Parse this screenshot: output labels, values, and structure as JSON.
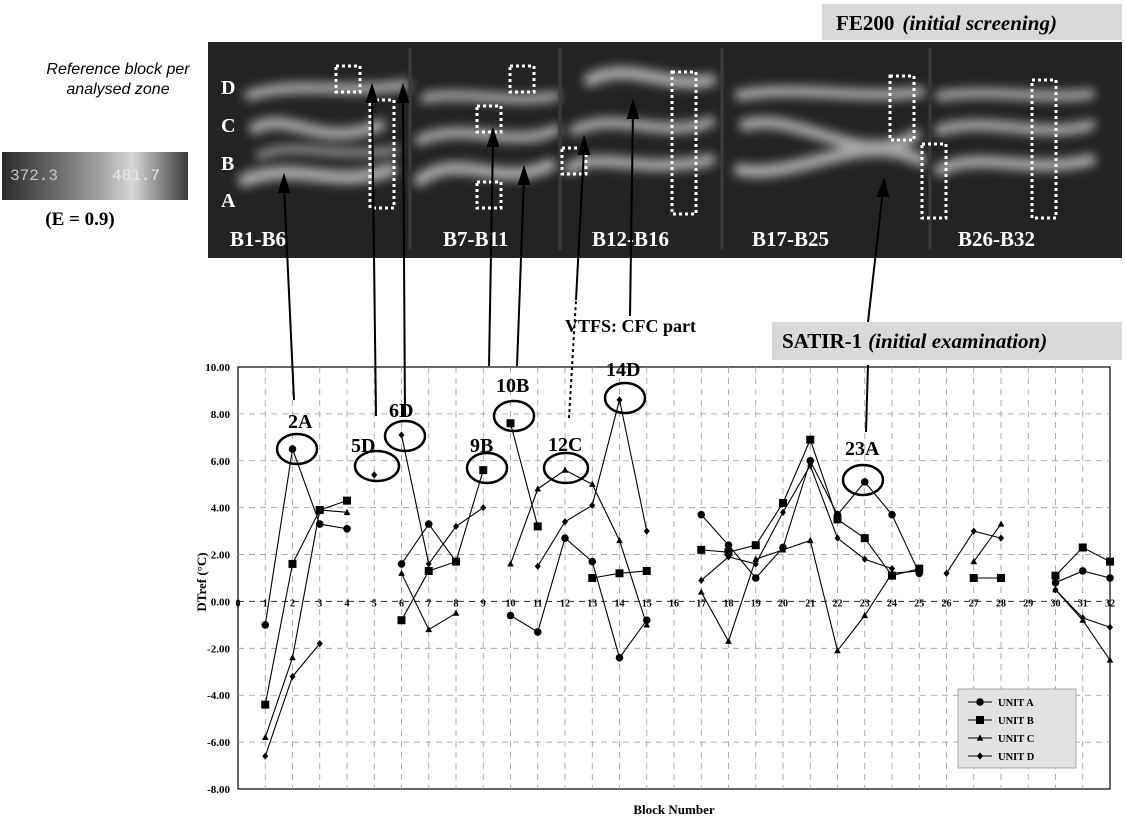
{
  "header": {
    "fe200_label": "FE200",
    "fe200_sub": "(initial screening)",
    "satir_label": "SATIR-1",
    "satir_sub": "(initial examination)",
    "vtfs_label": "VTFS: CFC  part",
    "reference_note_line1": "Reference block per",
    "reference_note_line2": "analysed zone",
    "emissivity": "(E = 0.9)",
    "colorbar_values": [
      "372.3",
      "481.7"
    ]
  },
  "ir_image": {
    "row_labels": [
      "D",
      "C",
      "B",
      "A"
    ],
    "zone_labels": [
      "B1-B6",
      "B7-B11",
      "B12-B16",
      "B17-B25",
      "B26-B32"
    ]
  },
  "callouts": [
    "2A",
    "5D",
    "6D",
    "9B",
    "10B",
    "12C",
    "14D",
    "23A"
  ],
  "chart_data": {
    "type": "line",
    "xlabel": "Block Number",
    "ylabel": "DTref (°C)",
    "xlim": [
      0,
      32
    ],
    "ylim": [
      -8,
      10
    ],
    "x_ticks": [
      "0",
      "1",
      "2",
      "3",
      "4",
      "5",
      "6",
      "7",
      "8",
      "9",
      "10",
      "11",
      "12",
      "13",
      "14",
      "15",
      "16",
      "17",
      "18",
      "19",
      "20",
      "21",
      "22",
      "23",
      "24",
      "25",
      "26",
      "27",
      "28",
      "29",
      "30",
      "31",
      "32"
    ],
    "y_ticks": [
      "10.00",
      "8.00",
      "6.00",
      "4.00",
      "2.00",
      "0.00",
      "-2.00",
      "-4.00",
      "-6.00",
      "-8.00"
    ],
    "grid": true,
    "legend_position": "bottom-right",
    "series": [
      {
        "name": "UNIT A",
        "marker": "circle",
        "segments": [
          [
            [
              1,
              -1.0
            ],
            [
              2,
              6.5
            ],
            [
              3,
              3.3
            ],
            [
              4,
              3.1
            ]
          ],
          [
            [
              6,
              1.6
            ],
            [
              7,
              3.3
            ],
            [
              8,
              1.7
            ]
          ],
          [
            [
              10,
              -0.6
            ],
            [
              11,
              -1.3
            ],
            [
              12,
              2.7
            ],
            [
              13,
              1.7
            ],
            [
              14,
              -2.4
            ],
            [
              15,
              -0.8
            ]
          ],
          [
            [
              17,
              3.7
            ],
            [
              18,
              2.4
            ],
            [
              19,
              1.0
            ],
            [
              20,
              2.3
            ],
            [
              21,
              6.0
            ],
            [
              22,
              3.7
            ],
            [
              23,
              5.1
            ],
            [
              24,
              3.7
            ],
            [
              25,
              1.2
            ]
          ],
          [
            [
              30,
              0.8
            ],
            [
              31,
              1.3
            ],
            [
              32,
              1.0
            ]
          ]
        ]
      },
      {
        "name": "UNIT B",
        "marker": "square",
        "segments": [
          [
            [
              1,
              -4.4
            ],
            [
              2,
              1.6
            ],
            [
              3,
              3.9
            ],
            [
              4,
              4.3
            ]
          ],
          [
            [
              6,
              -0.8
            ],
            [
              7,
              1.3
            ],
            [
              8,
              1.7
            ],
            [
              9,
              5.6
            ]
          ],
          [
            [
              10,
              7.6
            ],
            [
              11,
              3.2
            ]
          ],
          [
            [
              13,
              1.0
            ],
            [
              14,
              1.2
            ],
            [
              15,
              1.3
            ]
          ],
          [
            [
              17,
              2.2
            ],
            [
              18,
              2.1
            ],
            [
              19,
              2.4
            ],
            [
              20,
              4.2
            ],
            [
              21,
              6.9
            ],
            [
              22,
              3.5
            ],
            [
              23,
              2.7
            ],
            [
              24,
              1.1
            ],
            [
              25,
              1.4
            ]
          ],
          [
            [
              27,
              1.0
            ],
            [
              28,
              1.0
            ]
          ],
          [
            [
              30,
              1.1
            ],
            [
              31,
              2.3
            ],
            [
              32,
              1.7
            ]
          ]
        ]
      },
      {
        "name": "UNIT C",
        "marker": "triangle",
        "segments": [
          [
            [
              1,
              -5.8
            ],
            [
              2,
              -2.4
            ],
            [
              3,
              3.9
            ],
            [
              4,
              3.8
            ]
          ],
          [
            [
              6,
              1.2
            ],
            [
              7,
              -1.2
            ],
            [
              8,
              -0.5
            ]
          ],
          [
            [
              10,
              1.6
            ],
            [
              11,
              4.8
            ],
            [
              12,
              5.6
            ],
            [
              13,
              5.0
            ],
            [
              14,
              2.6
            ],
            [
              15,
              -1.0
            ]
          ],
          [
            [
              17,
              0.4
            ],
            [
              18,
              -1.7
            ],
            [
              19,
              1.8
            ],
            [
              20,
              2.2
            ],
            [
              21,
              2.6
            ],
            [
              22,
              -2.1
            ],
            [
              23,
              -0.6
            ],
            [
              24,
              1.2
            ],
            [
              25,
              1.3
            ]
          ],
          [
            [
              27,
              1.7
            ],
            [
              28,
              3.3
            ]
          ],
          [
            [
              30,
              0.5
            ],
            [
              31,
              -0.8
            ],
            [
              32,
              -2.5
            ]
          ]
        ]
      },
      {
        "name": "UNIT D",
        "marker": "diamond",
        "segments": [
          [
            [
              1,
              -6.6
            ],
            [
              2,
              -3.2
            ],
            [
              3,
              -1.8
            ]
          ],
          [
            [
              5,
              5.4
            ]
          ],
          [
            [
              6,
              7.1
            ],
            [
              7,
              1.6
            ],
            [
              8,
              3.2
            ],
            [
              9,
              4.0
            ]
          ],
          [
            [
              11,
              1.5
            ],
            [
              12,
              3.4
            ],
            [
              13,
              4.1
            ],
            [
              14,
              8.6
            ],
            [
              15,
              3.0
            ]
          ],
          [
            [
              17,
              0.9
            ],
            [
              18,
              1.9
            ],
            [
              19,
              1.6
            ],
            [
              20,
              3.8
            ],
            [
              21,
              5.8
            ],
            [
              22,
              2.7
            ],
            [
              23,
              1.8
            ],
            [
              24,
              1.4
            ]
          ],
          [
            [
              26,
              1.2
            ],
            [
              27,
              3.0
            ],
            [
              28,
              2.7
            ]
          ],
          [
            [
              30,
              0.5
            ],
            [
              31,
              -0.7
            ],
            [
              32,
              -1.1
            ]
          ]
        ]
      }
    ]
  }
}
